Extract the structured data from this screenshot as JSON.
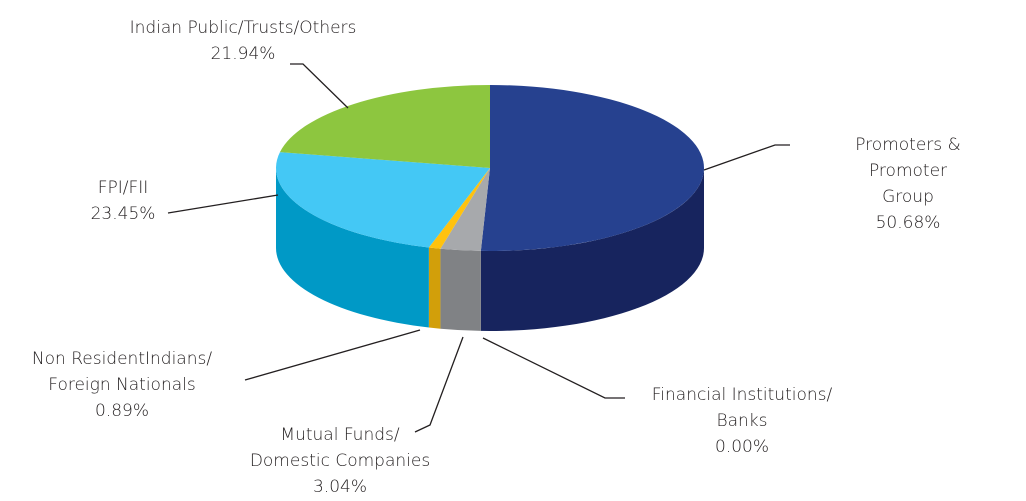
{
  "chart_data": {
    "type": "pie3d",
    "categories": [
      "Promoters & Promoter\nGroup",
      "Financial Institutions/\nBanks",
      "Mutual Funds/\nDomestic Companies",
      "Non ResidentIndians/\nForeign Nationals",
      "FPI/FII",
      "Indian Public/Trusts/Others"
    ],
    "values": [
      50.68,
      0.0,
      3.04,
      0.89,
      23.45,
      21.94
    ],
    "value_labels": [
      "50.68%",
      "0.00%",
      "3.04%",
      "0.89%",
      "23.45%",
      "21.94%"
    ],
    "colors": [
      "#26418f",
      "#6d6e71",
      "#a7a9ac",
      "#ffc20e",
      "#44c8f5",
      "#8dc63f"
    ],
    "side_colors": [
      "#17245e",
      "#4d4e50",
      "#808285",
      "#d29f0a",
      "#0099c6",
      "#6a9a2c"
    ]
  }
}
